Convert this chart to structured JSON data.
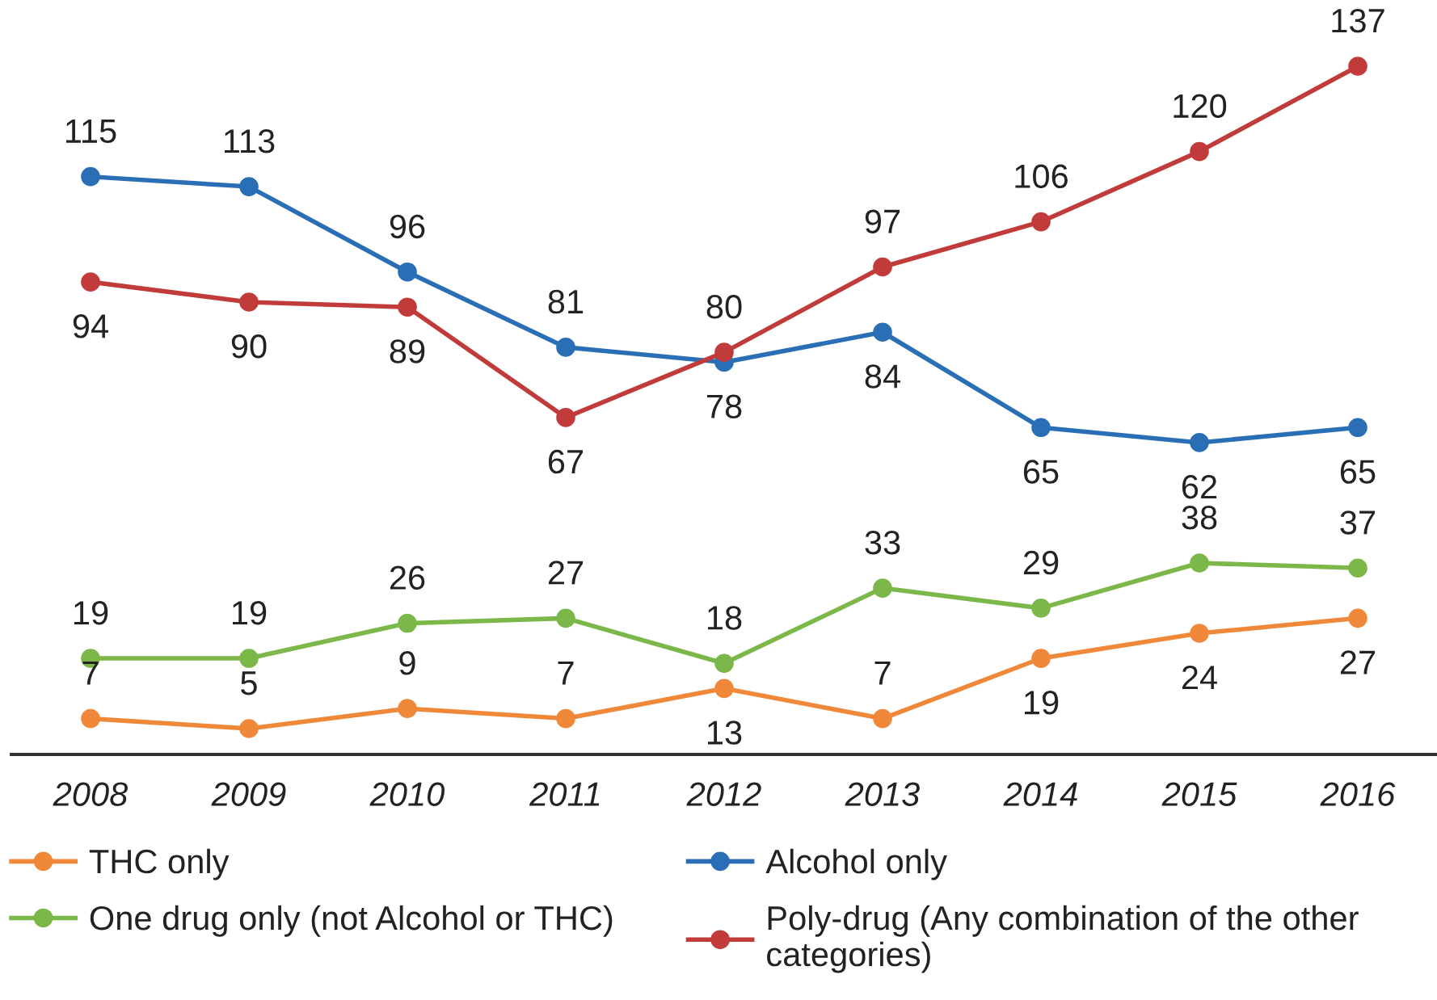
{
  "chart_data": {
    "type": "line",
    "categories": [
      "2008",
      "2009",
      "2010",
      "2011",
      "2012",
      "2013",
      "2014",
      "2015",
      "2016"
    ],
    "series": [
      {
        "name": "THC only",
        "color": "#f0883a",
        "values": [
          7,
          5,
          9,
          7,
          13,
          7,
          19,
          24,
          27
        ]
      },
      {
        "name": "Alcohol only",
        "color": "#2a6fb5",
        "values": [
          115,
          113,
          96,
          81,
          78,
          84,
          65,
          62,
          65
        ]
      },
      {
        "name": "One drug only (not Alcohol or THC)",
        "color": "#7cb74a",
        "values": [
          19,
          19,
          26,
          27,
          18,
          33,
          29,
          38,
          37
        ]
      },
      {
        "name": "Poly-drug (Any combination of the other categories)",
        "color": "#c23b3b",
        "values": [
          94,
          90,
          89,
          67,
          80,
          97,
          106,
          120,
          137
        ]
      }
    ],
    "tick_labels": "x",
    "data_labels": true,
    "legend": "bottom",
    "marker": "circle",
    "line_style": "solid"
  }
}
